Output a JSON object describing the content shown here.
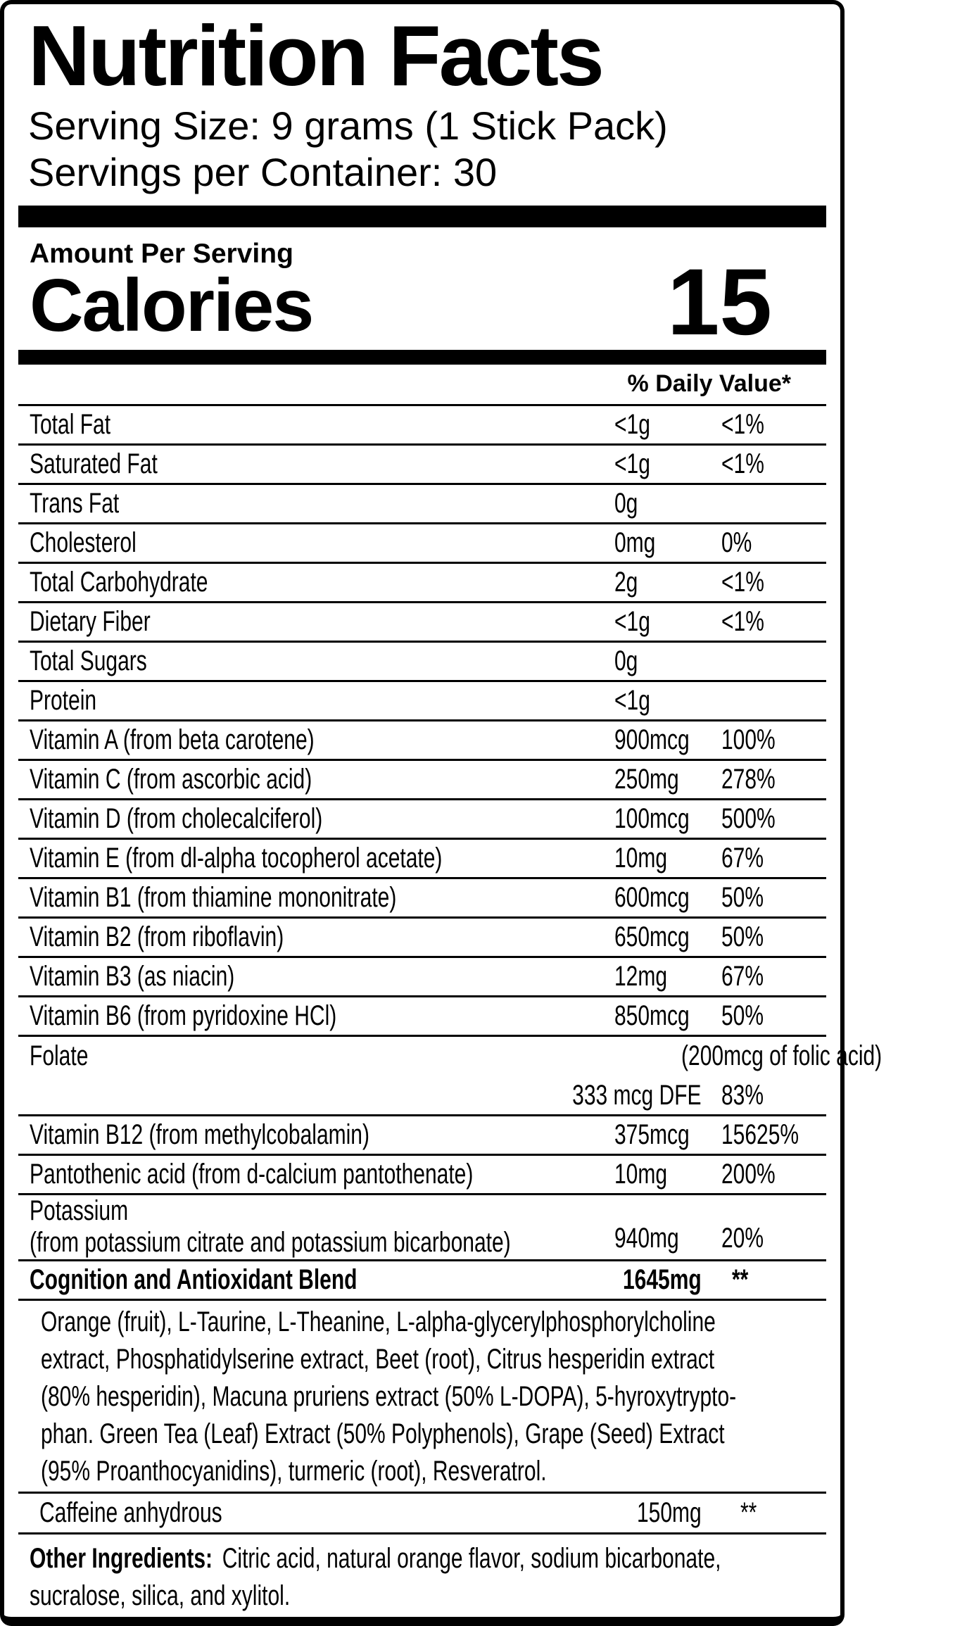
{
  "header": {
    "title": "Nutrition Facts",
    "serving_size": "Serving Size: 9 grams (1 Stick Pack)",
    "servings_per_container": "Servings per Container: 30"
  },
  "calories": {
    "section_label": "Amount Per Serving",
    "label": "Calories",
    "value": "15"
  },
  "daily_value_header": "% Daily Value*",
  "nutrient_rows": [
    {
      "label": "Total Fat",
      "amount": "<1g",
      "dv": "<1%"
    },
    {
      "label": "Saturated Fat",
      "amount": "<1g",
      "dv": "<1%"
    },
    {
      "label": "Trans Fat",
      "amount": "0g",
      "dv": ""
    },
    {
      "label": "Cholesterol",
      "amount": "0mg",
      "dv": "0%"
    },
    {
      "label": "Total Carbohydrate",
      "amount": "2g",
      "dv": "<1%"
    },
    {
      "label": "Dietary Fiber",
      "amount": "<1g",
      "dv": "<1%"
    },
    {
      "label": "Total Sugars",
      "amount": "0g",
      "dv": ""
    },
    {
      "label": "Protein",
      "amount": "<1g",
      "dv": ""
    },
    {
      "label": "Vitamin A (from beta carotene)",
      "amount": "900mcg",
      "dv": "100%"
    },
    {
      "label": "Vitamin C (from ascorbic acid)",
      "amount": "250mg",
      "dv": "278%"
    },
    {
      "label": "Vitamin D (from cholecalciferol)",
      "amount": "100mcg",
      "dv": "500%"
    },
    {
      "label": "Vitamin E (from dl-alpha tocopherol acetate)",
      "amount": "10mg",
      "dv": "67%"
    },
    {
      "label": "Vitamin B1 (from thiamine mononitrate)",
      "amount": "600mcg",
      "dv": "50%"
    },
    {
      "label": "Vitamin B2 (from riboflavin)",
      "amount": "650mcg",
      "dv": "50%"
    },
    {
      "label": "Vitamin B3 (as niacin)",
      "amount": "12mg",
      "dv": "67%"
    },
    {
      "label": "Vitamin B6 (from pyridoxine HCl)",
      "amount": "850mcg",
      "dv": "50%"
    }
  ],
  "folate": {
    "label": "Folate",
    "note": "(200mcg of folic acid)",
    "amount": "333 mcg DFE",
    "dv": "83%"
  },
  "nutrient_rows_2": [
    {
      "label": "Vitamin B12 (from methylcobalamin)",
      "amount": "375mcg",
      "dv": "15625%"
    },
    {
      "label": "Pantothenic acid (from d-calcium pantothenate)",
      "amount": "10mg",
      "dv": "200%"
    }
  ],
  "potassium": {
    "label_line1": "Potassium",
    "label_line2": "(from potassium citrate and potassium bicarbonate)",
    "amount": "940mg",
    "dv": "20%"
  },
  "blend": {
    "label": "Cognition and Antioxidant Blend",
    "amount": "1645mg",
    "dv": "**"
  },
  "blend_description_lines": [
    "Orange (fruit), L-Taurine, L-Theanine, L-alpha-glycerylphosphorylcholine",
    "extract, Phosphatidylserine extract, Beet (root), Citrus hesperidin extract",
    "(80% hesperidin), Macuna pruriens extract (50% L-DOPA), 5-hyroxytrypto-",
    "phan. Green Tea (Leaf) Extract (50% Polyphenols), Grape (Seed) Extract",
    "(95% Proanthocyanidins), turmeric (root), Resveratrol."
  ],
  "caffeine": {
    "label": "Caffeine anhydrous",
    "amount": "150mg",
    "dv": "**"
  },
  "other_ingredients": {
    "label": "Other Ingredients:",
    "line1": "Citric acid, natural orange flavor, sodium bicarbonate,",
    "line2": "sucralose, silica, and xylitol."
  },
  "colors": {
    "ink": "#000000",
    "background": "#ffffff"
  }
}
